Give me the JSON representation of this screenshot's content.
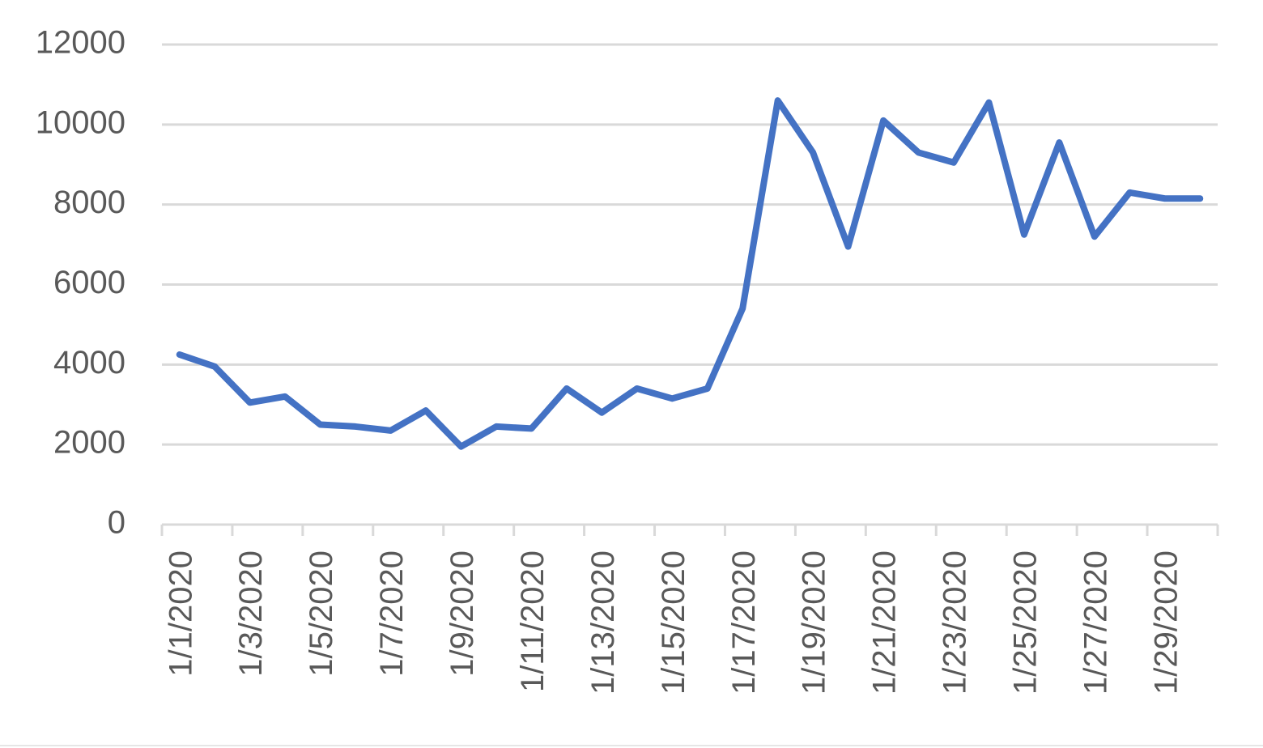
{
  "chart_data": {
    "type": "line",
    "categories": [
      "1/1/2020",
      null,
      "1/3/2020",
      null,
      "1/5/2020",
      null,
      "1/7/2020",
      null,
      "1/9/2020",
      null,
      "1/11/2020",
      null,
      "1/13/2020",
      null,
      "1/15/2020",
      null,
      "1/17/2020",
      null,
      "1/19/2020",
      null,
      "1/21/2020",
      null,
      "1/23/2020",
      null,
      "1/25/2020",
      null,
      "1/27/2020",
      null,
      "1/29/2020",
      null
    ],
    "values": [
      4250,
      3950,
      3050,
      3200,
      2500,
      2450,
      2350,
      2850,
      1950,
      2450,
      2400,
      3400,
      2800,
      3400,
      3150,
      3400,
      5400,
      10600,
      9300,
      6950,
      10100,
      9300,
      9050,
      10550,
      7250,
      9550,
      7200,
      8300,
      8150,
      8150
    ],
    "color": "#4472c4",
    "ylim": [
      0,
      12000
    ],
    "yticks": [
      0,
      2000,
      4000,
      6000,
      8000,
      10000,
      12000
    ],
    "grid": true
  }
}
